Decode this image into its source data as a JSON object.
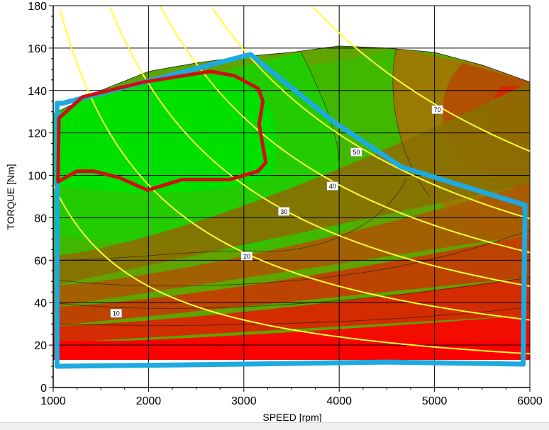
{
  "chart_data": {
    "type": "contour",
    "xlabel": "SPEED [rpm]",
    "ylabel": "TORQUE [Nm]",
    "xlim": [
      1000,
      6000
    ],
    "ylim": [
      0,
      180
    ],
    "x_ticks": [
      1000,
      2000,
      3000,
      4000,
      5000,
      6000
    ],
    "y_ticks": [
      0,
      20,
      40,
      60,
      80,
      100,
      120,
      140,
      160,
      180
    ],
    "grid": true,
    "max_torque_curve": [
      {
        "x": 1000,
        "y": 129
      },
      {
        "x": 1500,
        "y": 140
      },
      {
        "x": 2000,
        "y": 149
      },
      {
        "x": 2500,
        "y": 153
      },
      {
        "x": 3000,
        "y": 156
      },
      {
        "x": 3500,
        "y": 158
      },
      {
        "x": 4000,
        "y": 161
      },
      {
        "x": 4500,
        "y": 160
      },
      {
        "x": 5000,
        "y": 158
      },
      {
        "x": 5500,
        "y": 152
      },
      {
        "x": 6000,
        "y": 144
      }
    ],
    "efficiency_bands": [
      {
        "label": "band-1",
        "color": "#ff0000",
        "y_low_1000": 13,
        "y_low_6000": 13,
        "y_high_1000": 21,
        "y_high_6000": 34
      },
      {
        "label": "band-2",
        "color": "#dd2200",
        "y_low_1000": 21,
        "y_low_6000": 34,
        "y_high_1000": 29,
        "y_high_6000": 52
      },
      {
        "label": "band-3",
        "color": "#c43c00",
        "y_low_1000": 29,
        "y_low_6000": 52,
        "y_high_1000": 38,
        "y_high_6000": 72
      },
      {
        "label": "band-4",
        "color": "#a85a00",
        "y_low_1000": 38,
        "y_low_6000": 72,
        "y_high_1000": 48,
        "y_high_6000": 96
      },
      {
        "label": "band-5",
        "color": "#8a7000",
        "y_low_1000": 48,
        "y_low_6000": 96,
        "y_high_1000": 62,
        "y_high_6000": 144
      }
    ],
    "power_lines": [
      {
        "label": "10",
        "kw": 10,
        "label_x": 1660,
        "label_y": 35,
        "color": "#ffff33"
      },
      {
        "label": "20",
        "kw": 20,
        "label_x": 3030,
        "label_y": 62,
        "color": "#ffff33"
      },
      {
        "label": "30",
        "kw": 30,
        "label_x": 3420,
        "label_y": 83,
        "color": "#ffff33"
      },
      {
        "label": "40",
        "kw": 40,
        "label_x": 3930,
        "label_y": 95,
        "color": "#ffff33"
      },
      {
        "label": "50",
        "kw": 50,
        "label_x": 4180,
        "label_y": 111,
        "color": "#ffff33"
      },
      {
        "label": "70",
        "kw": 70,
        "label_x": 5030,
        "label_y": 131,
        "color": "#ffff33"
      }
    ],
    "blue_region": {
      "color": "#1eaadf",
      "points": [
        {
          "x": 1040,
          "y": 134
        },
        {
          "x": 1100,
          "y": 134
        },
        {
          "x": 3070,
          "y": 157
        },
        {
          "x": 3950,
          "y": 125
        },
        {
          "x": 4650,
          "y": 104
        },
        {
          "x": 5950,
          "y": 86
        },
        {
          "x": 5930,
          "y": 11
        },
        {
          "x": 4500,
          "y": 12
        },
        {
          "x": 3000,
          "y": 11
        },
        {
          "x": 1040,
          "y": 10
        }
      ]
    },
    "red_region": {
      "color": "#cc1111",
      "points": [
        {
          "x": 1060,
          "y": 127
        },
        {
          "x": 1310,
          "y": 137
        },
        {
          "x": 1950,
          "y": 144
        },
        {
          "x": 2650,
          "y": 149
        },
        {
          "x": 2900,
          "y": 147
        },
        {
          "x": 3150,
          "y": 141
        },
        {
          "x": 3200,
          "y": 135
        },
        {
          "x": 3160,
          "y": 124
        },
        {
          "x": 3230,
          "y": 106
        },
        {
          "x": 3150,
          "y": 102
        },
        {
          "x": 2850,
          "y": 98
        },
        {
          "x": 2350,
          "y": 98
        },
        {
          "x": 1990,
          "y": 93
        },
        {
          "x": 1690,
          "y": 99
        },
        {
          "x": 1420,
          "y": 102
        },
        {
          "x": 1250,
          "y": 102
        },
        {
          "x": 1050,
          "y": 97
        }
      ]
    }
  }
}
